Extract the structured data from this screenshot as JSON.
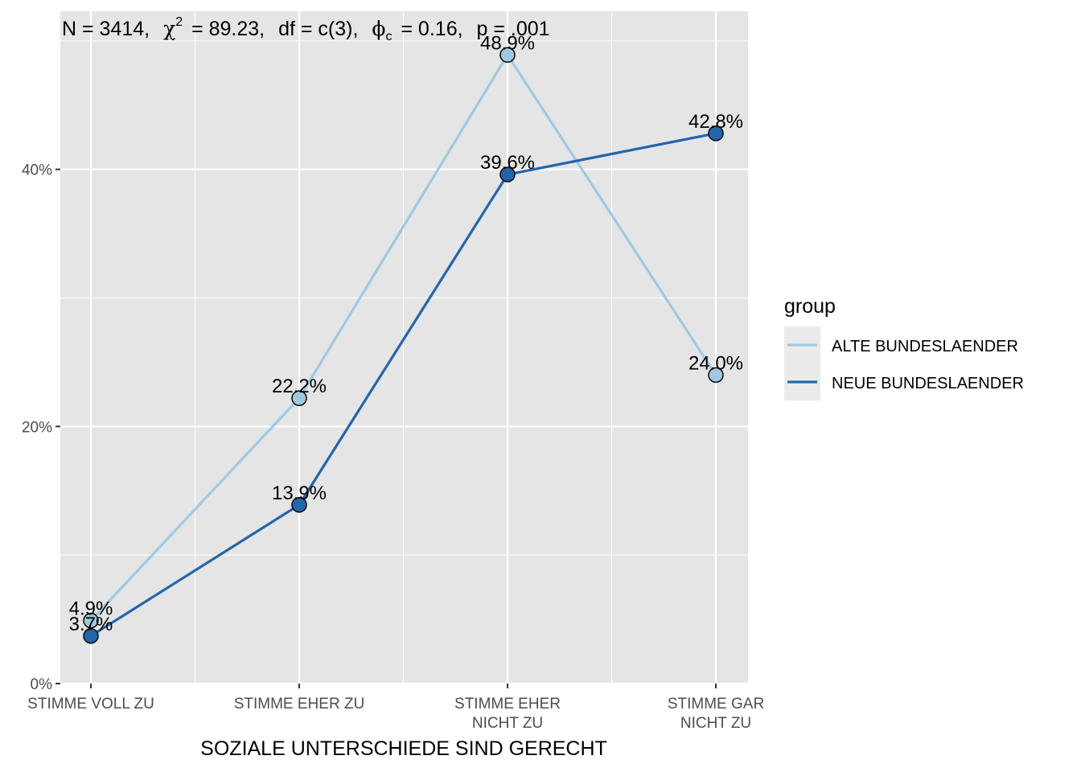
{
  "chart_data": {
    "type": "line",
    "title": "N = 3414,  χ² = 89.23,  df = c(3),  φc = 0.16,  p = .001",
    "stats": {
      "n": "N = 3414,",
      "chi_symbol": "χ",
      "chi_sup": "2",
      "chi_rest": "= 89.23,",
      "df": "df = c(3),",
      "phi_symbol": "ϕ",
      "phi_sub": "c",
      "phi_rest": "= 0.16,",
      "p": "p = .001"
    },
    "xlabel": "SOZIALE UNTERSCHIEDE SIND GERECHT",
    "ylabel": "",
    "categories": [
      "STIMME VOLL ZU",
      "STIMME EHER ZU",
      "STIMME EHER NICHT ZU",
      "STIMME GAR NICHT ZU"
    ],
    "category_lines": [
      [
        "STIMME VOLL ZU"
      ],
      [
        "STIMME EHER ZU"
      ],
      [
        "STIMME EHER",
        "NICHT ZU"
      ],
      [
        "STIMME GAR",
        "NICHT ZU"
      ]
    ],
    "y_ticks": [
      0,
      20,
      40
    ],
    "y_tick_labels": [
      "0%",
      "20%",
      "40%"
    ],
    "ylim": [
      0,
      52.3
    ],
    "grid": true,
    "legend": {
      "title": "group",
      "position": "right"
    },
    "series": [
      {
        "name": "ALTE BUNDESLAENDER",
        "color": "#9ecae1",
        "values": [
          4.9,
          22.2,
          48.9,
          24.0
        ],
        "labels": [
          "4.9%",
          "22.2%",
          "48.9%",
          "24.0%"
        ]
      },
      {
        "name": "NEUE BUNDESLAENDER",
        "color": "#2166ac",
        "values": [
          3.7,
          13.9,
          39.6,
          42.8
        ],
        "labels": [
          "3.7%",
          "13.9%",
          "39.6%",
          "42.8%"
        ]
      }
    ],
    "panel_background": "#e5e5e5",
    "grid_color": "#ffffff"
  }
}
